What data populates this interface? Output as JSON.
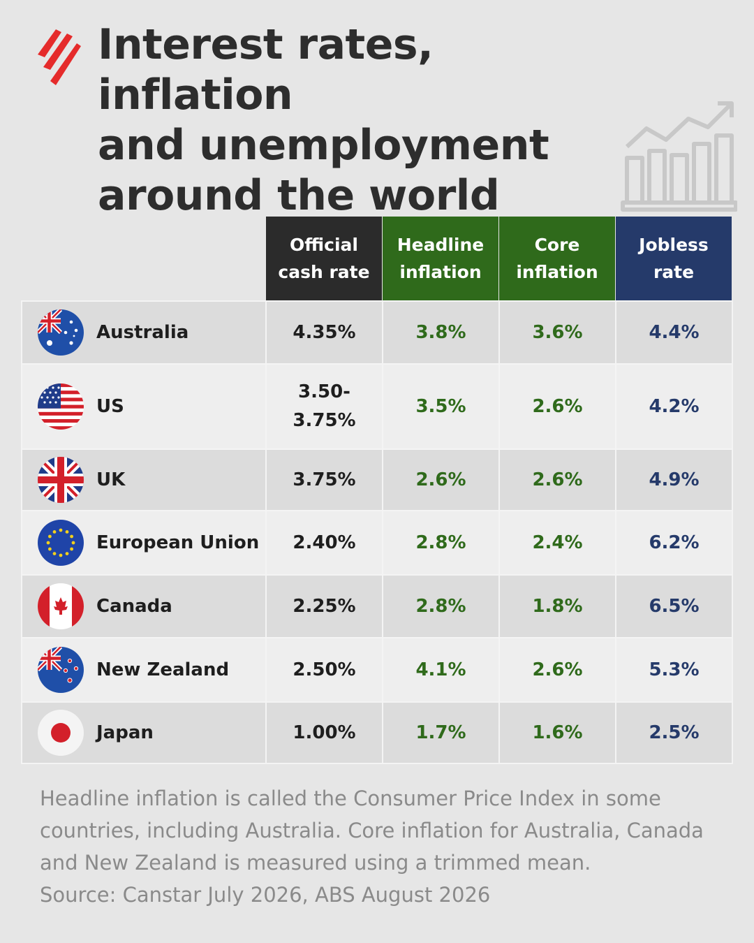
{
  "title": {
    "lines": [
      "Interest rates, inflation",
      "and unemployment",
      "around the world"
    ]
  },
  "colors": {
    "rate_header": "#2b2b2b",
    "headline_header": "#2f6a1b",
    "core_header": "#2f6a1b",
    "jobless_header": "#253a6a",
    "brand": "#e52b2b"
  },
  "chart_data": {
    "type": "table",
    "columns": [
      {
        "lines": [
          "Official",
          "cash rate"
        ]
      },
      {
        "lines": [
          "Headline",
          "inflation"
        ]
      },
      {
        "lines": [
          "Core",
          "inflation"
        ]
      },
      {
        "lines": [
          "Jobless",
          "rate"
        ]
      }
    ],
    "rows": [
      {
        "country": "Australia",
        "flag": "australia-flag-icon",
        "cash_rate": "4.35%",
        "headline": "3.8%",
        "core": "3.6%",
        "jobless": "4.4%"
      },
      {
        "country": "US",
        "flag": "us-flag-icon",
        "cash_rate": "3.50-\n3.75%",
        "headline": "3.5%",
        "core": "2.6%",
        "jobless": "4.2%"
      },
      {
        "country": "UK",
        "flag": "uk-flag-icon",
        "cash_rate": "3.75%",
        "headline": "2.6%",
        "core": "2.6%",
        "jobless": "4.9%"
      },
      {
        "country": "European Union",
        "flag": "eu-flag-icon",
        "cash_rate": "2.40%",
        "headline": "2.8%",
        "core": "2.4%",
        "jobless": "6.2%"
      },
      {
        "country": "Canada",
        "flag": "canada-flag-icon",
        "cash_rate": "2.25%",
        "headline": "2.8%",
        "core": "1.8%",
        "jobless": "6.5%"
      },
      {
        "country": "New Zealand",
        "flag": "new-zealand-flag-icon",
        "cash_rate": "2.50%",
        "headline": "4.1%",
        "core": "2.6%",
        "jobless": "5.3%"
      },
      {
        "country": "Japan",
        "flag": "japan-flag-icon",
        "cash_rate": "1.00%",
        "headline": "1.7%",
        "core": "1.6%",
        "jobless": "2.5%"
      }
    ]
  },
  "footnote": {
    "lines": [
      "Headline inflation is called the Consumer Price Index in some",
      "countries, including Australia. Core inflation for Australia, Canada",
      "and New Zealand is measured using a trimmed mean.",
      "Source: Canstar July 2026, ABS August 2026"
    ]
  }
}
